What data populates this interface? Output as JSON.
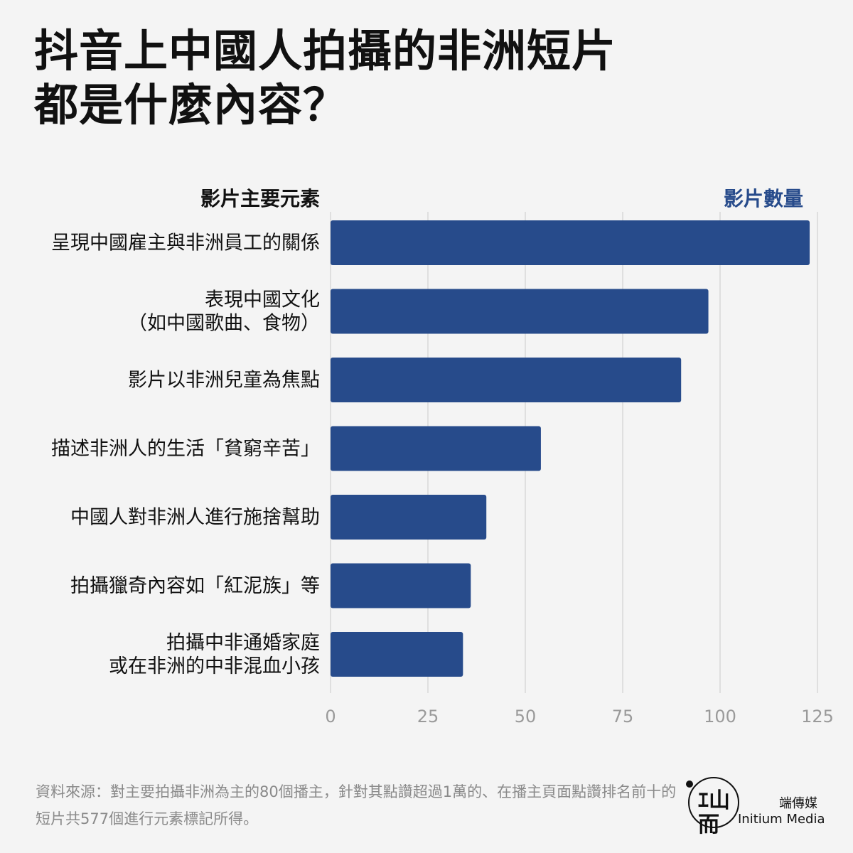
{
  "title_line1": "抖音上中國人拍攝的非洲短片",
  "title_line2": "都是什麼內容？",
  "column_header_left": "影片主要元素",
  "column_header_right": "影片數量",
  "chart_data": {
    "type": "bar",
    "orientation": "horizontal",
    "categories": [
      [
        "呈現中國雇主與非洲員工的關係"
      ],
      [
        "表現中國文化",
        "（如中國歌曲、食物）"
      ],
      [
        "影片以非洲兒童為焦點"
      ],
      [
        "描述非洲人的生活「貧窮辛苦」"
      ],
      [
        "中國人對非洲人進行施捨幫助"
      ],
      [
        "拍攝獵奇內容如「紅泥族」等"
      ],
      [
        "拍攝中非通婚家庭",
        "或在非洲的中非混血小孩"
      ]
    ],
    "values": [
      123,
      97,
      90,
      54,
      40,
      36,
      34
    ],
    "xlim": [
      0,
      125
    ],
    "xticks": [
      0,
      25,
      50,
      75,
      100,
      125
    ],
    "grid": true,
    "bar_color": "#274b8b"
  },
  "source_note": "資料來源：對主要拍攝非洲為主的80個播主，針對其點讚超過1萬的、在播主頁面點讚排名前十的短片共577個進行元素標記所得。",
  "logo_glyph": "ｴ山而",
  "brand_cn": "端傳媒",
  "brand_en": "Initium Media"
}
